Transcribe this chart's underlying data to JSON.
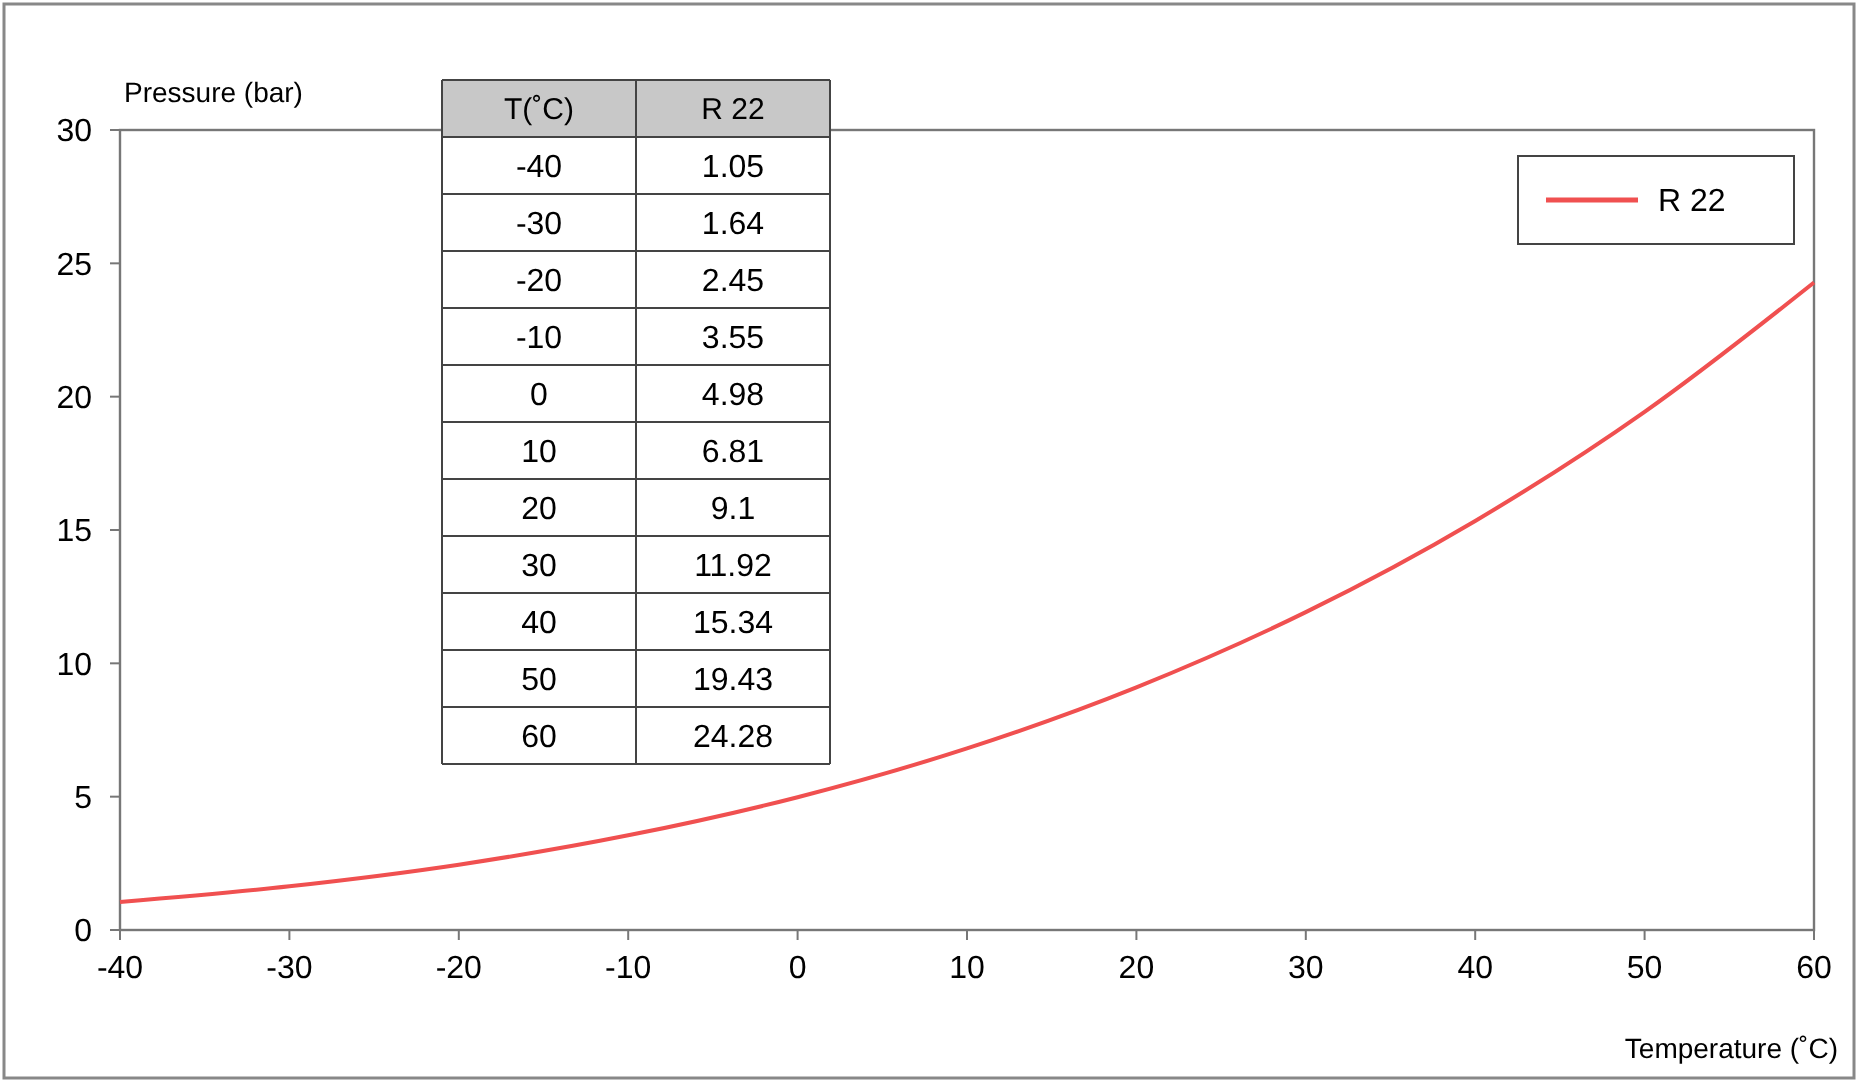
{
  "chart_data": {
    "type": "line",
    "xlabel": "Temperature (˚C)",
    "ylabel": "Pressure (bar)",
    "x": [
      -40,
      -30,
      -20,
      -10,
      0,
      10,
      20,
      30,
      40,
      50,
      60
    ],
    "series": [
      {
        "name": "R 22",
        "color": "#f05050",
        "values": [
          1.05,
          1.64,
          2.45,
          3.55,
          4.98,
          6.81,
          9.1,
          11.92,
          15.34,
          19.43,
          24.28
        ]
      }
    ],
    "value_labels": [
      "1.05",
      "1.64",
      "2.45",
      "3.55",
      "4.98",
      "6.81",
      "9.1",
      "11.92",
      "15.34",
      "19.43",
      "24.28"
    ],
    "annotations": [
      "T(˚C)",
      "-40",
      "-30",
      "-20",
      "-10",
      "0",
      "10",
      "20",
      "30",
      "40",
      "50",
      "60"
    ],
    "legend": "top right",
    "line_style": "solid",
    "xlim": [
      -40,
      60
    ],
    "ylim": [
      0,
      30
    ],
    "xticks": [
      -40,
      -30,
      -20,
      -10,
      0,
      10,
      20,
      30,
      40,
      50,
      60
    ],
    "yticks": [
      0,
      5,
      10,
      15,
      20,
      25,
      30
    ]
  }
}
